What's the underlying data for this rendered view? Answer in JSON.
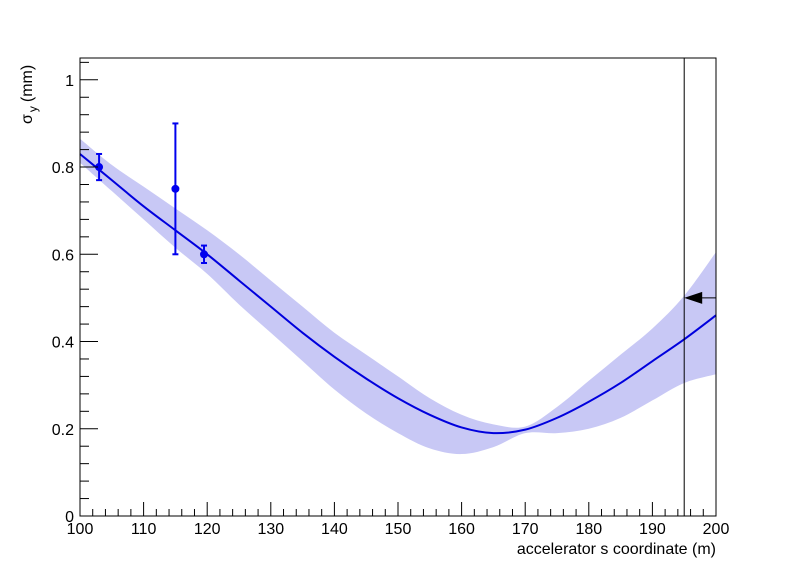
{
  "chart_data": {
    "type": "line",
    "title": "",
    "xlabel": "accelerator s coordinate (m)",
    "ylabel": "σ",
    "ylabel_subscript": "y",
    "ylabel_unit": "(mm)",
    "xlim": [
      100,
      200
    ],
    "ylim": [
      0,
      1.05
    ],
    "x_ticks": [
      100,
      110,
      120,
      130,
      140,
      150,
      160,
      170,
      180,
      190,
      200
    ],
    "y_ticks": [
      0,
      0.2,
      0.4,
      0.6,
      0.8,
      1
    ],
    "grid": false,
    "legend": "none",
    "colors": {
      "line": "#0000dd",
      "band": "#c8c8f5",
      "marker": "#0000ee",
      "axis": "#000000"
    },
    "fit_line": {
      "x": [
        100,
        105,
        110,
        115,
        120,
        125,
        130,
        135,
        140,
        145,
        150,
        155,
        160,
        165,
        170,
        175,
        180,
        185,
        190,
        195,
        200
      ],
      "y": [
        0.83,
        0.77,
        0.71,
        0.655,
        0.6,
        0.54,
        0.48,
        0.42,
        0.365,
        0.315,
        0.27,
        0.232,
        0.203,
        0.19,
        0.198,
        0.225,
        0.262,
        0.305,
        0.355,
        0.405,
        0.46
      ]
    },
    "band": {
      "x": [
        100,
        105,
        110,
        115,
        120,
        125,
        130,
        135,
        140,
        145,
        150,
        155,
        160,
        165,
        170,
        175,
        180,
        185,
        190,
        195,
        200
      ],
      "upper": [
        0.865,
        0.805,
        0.755,
        0.705,
        0.655,
        0.6,
        0.54,
        0.48,
        0.42,
        0.37,
        0.32,
        0.27,
        0.232,
        0.21,
        0.205,
        0.25,
        0.31,
        0.37,
        0.43,
        0.505,
        0.605
      ],
      "lower": [
        0.81,
        0.745,
        0.68,
        0.615,
        0.555,
        0.485,
        0.42,
        0.355,
        0.29,
        0.235,
        0.19,
        0.155,
        0.142,
        0.158,
        0.19,
        0.19,
        0.2,
        0.225,
        0.265,
        0.305,
        0.325
      ]
    },
    "points": [
      {
        "x": 103,
        "y": 0.8,
        "yerr": 0.03
      },
      {
        "x": 115,
        "y": 0.75,
        "yerr": 0.15
      },
      {
        "x": 119.5,
        "y": 0.6,
        "yerr": 0.02
      }
    ],
    "vertical_marker": {
      "x": 195
    },
    "arrow_marker": {
      "x_tail": 200,
      "x_head": 195,
      "y": 0.5
    }
  }
}
